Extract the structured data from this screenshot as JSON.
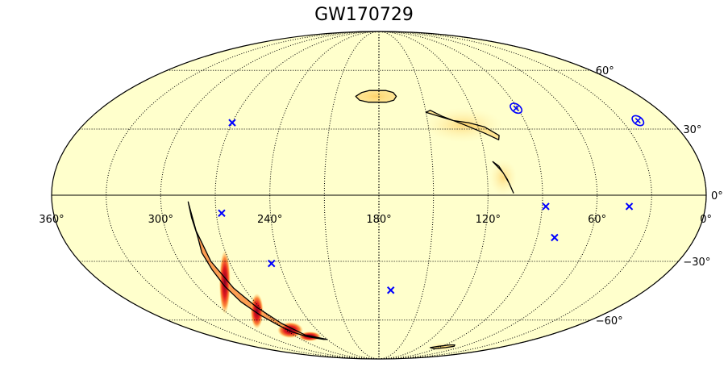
{
  "chart_data": {
    "type": "heatmap",
    "projection": "mollweide",
    "title": "GW170729",
    "grid": true,
    "x_direction": "decreasing-to-right",
    "x_ticks": [
      {
        "value": 360,
        "label": "360°"
      },
      {
        "value": 300,
        "label": "300°"
      },
      {
        "value": 240,
        "label": "240°"
      },
      {
        "value": 180,
        "label": "180°"
      },
      {
        "value": 120,
        "label": "120°"
      },
      {
        "value": 60,
        "label": "60°"
      },
      {
        "value": 0,
        "label": "0°"
      }
    ],
    "y_ticks": [
      {
        "value": 60,
        "label": "60°"
      },
      {
        "value": 30,
        "label": "30°"
      },
      {
        "value": 0,
        "label": "0°"
      },
      {
        "value": -30,
        "label": "−30°"
      },
      {
        "value": -60,
        "label": "−60°"
      }
    ],
    "colormap": "YlOrRd",
    "colors": {
      "background": "#ffffcc",
      "grid": "#000000",
      "marker": "#0000ff",
      "contour": "#000000",
      "peak": "#800026"
    },
    "markers": {
      "symbol": "x",
      "points": [
        {
          "ra": 270,
          "dec": 33
        },
        {
          "ra": 267,
          "dec": -8
        },
        {
          "ra": 245,
          "dec": -31
        },
        {
          "ra": 172,
          "dec": -44
        },
        {
          "ra": 80,
          "dec": -19
        },
        {
          "ra": 88,
          "dec": -5
        },
        {
          "ra": 42,
          "dec": -5
        }
      ]
    },
    "ellipses": [
      {
        "ra": 91,
        "dec": 40
      },
      {
        "ra": 20,
        "dec": 34
      }
    ],
    "probability_regions": [
      {
        "name": "southern-arc",
        "peak": 0.95,
        "ra": [
          285,
          284,
          283,
          284,
          283,
          282,
          280,
          276,
          271,
          267,
          259,
          252,
          244,
          240,
          258,
          266,
          272,
          277,
          281,
          283,
          285
        ],
        "dec": [
          -3,
          -10,
          -18,
          -26,
          -34,
          -42,
          -50,
          -57,
          -63,
          -67,
          -70,
          -71,
          -72,
          -72,
          -69,
          -62,
          -53,
          -43,
          -30,
          -16,
          -3
        ]
      },
      {
        "name": "north-blob",
        "peak": 0.3,
        "ra": [
          196,
          192,
          187,
          181,
          175,
          170,
          168,
          170,
          175,
          181,
          187,
          193,
          196
        ],
        "dec": [
          46,
          48,
          49,
          49,
          49,
          48,
          46,
          44,
          43,
          43,
          43,
          44,
          46
        ]
      },
      {
        "name": "north-arc",
        "peak": 0.2,
        "ra": [
          150,
          147,
          140,
          128,
          117,
          110,
          109,
          116,
          125,
          134,
          142,
          150
        ],
        "dec": [
          38,
          39,
          36,
          32,
          28,
          25,
          27,
          31,
          33,
          34,
          36,
          38
        ]
      },
      {
        "name": "equatorial-arc",
        "peak": 0.15,
        "ra": [
          116,
          113,
          109,
          106,
          108,
          111,
          115,
          116
        ],
        "dec": [
          15,
          13,
          7,
          1,
          5,
          10,
          14,
          15
        ]
      },
      {
        "name": "south-fragment",
        "peak": 0.1,
        "ra": [
          103,
          95,
          84,
          77,
          73,
          80,
          92,
          103
        ],
        "dec": [
          -78,
          -77,
          -76,
          -76,
          -77,
          -78,
          -79,
          -78
        ]
      }
    ]
  }
}
